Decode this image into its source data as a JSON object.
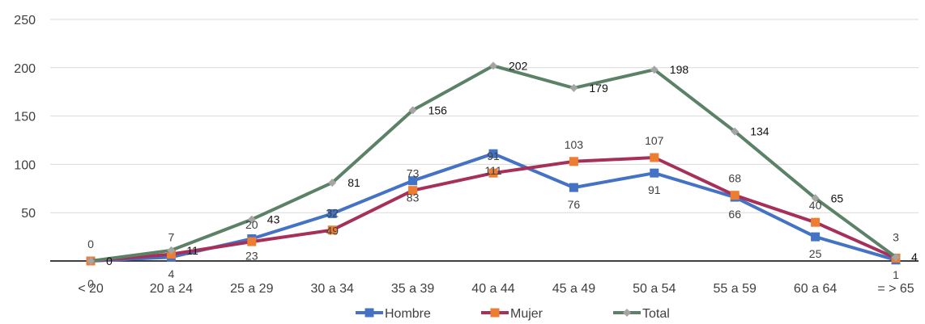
{
  "chart_data": {
    "type": "line",
    "categories": [
      "< 20",
      "20 a 24",
      "25 a 29",
      "30 a 34",
      "35 a 39",
      "40 a 44",
      "45 a 49",
      "50 a 54",
      "55 a 59",
      "60 a 64",
      "= > 65"
    ],
    "series": [
      {
        "name": "Hombre",
        "color": "#4472C4",
        "marker": "square",
        "values": [
          0,
          4,
          23,
          49,
          83,
          111,
          76,
          91,
          66,
          25,
          1
        ]
      },
      {
        "name": "Mujer",
        "color": "#A6305A",
        "marker": "square",
        "marker_color": "#ED7D31",
        "values": [
          0,
          7,
          20,
          32,
          73,
          91,
          103,
          107,
          68,
          40,
          3
        ]
      },
      {
        "name": "Total",
        "color": "#5B8266",
        "marker": "diamond",
        "marker_color": "#A5A5A5",
        "values": [
          0,
          11,
          43,
          81,
          156,
          202,
          179,
          198,
          134,
          65,
          4
        ]
      }
    ],
    "yticks": [
      50,
      100,
      150,
      200,
      250
    ],
    "ylim": [
      0,
      250
    ],
    "grid": true,
    "legend": "bottom"
  }
}
